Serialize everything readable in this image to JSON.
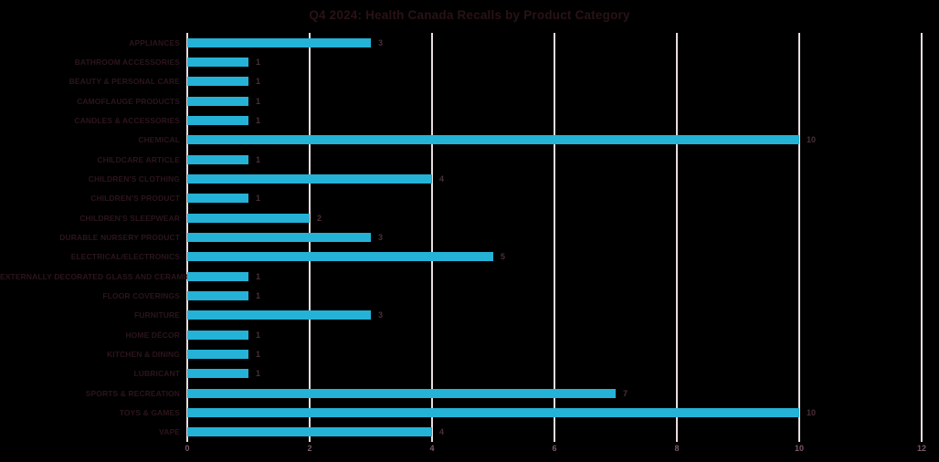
{
  "title": "Q4 2024: Health Canada Recalls by Product Category",
  "chart_data": {
    "type": "bar",
    "orientation": "horizontal",
    "title": "Q4 2024: Health Canada Recalls by Product Category",
    "categories": [
      "APPLIANCES",
      "BATHROOM ACCESSORIES",
      "BEAUTY & PERSONAL CARE",
      "CAMOFLAUGE PRODUCTS",
      "CANDLES & ACCESSORIES",
      "CHEMICAL",
      "CHILDCARE ARTICLE",
      "CHILDREN'S CLOTHING",
      "CHILDREN'S PRODUCT",
      "CHILDREN'S SLEEPWEAR",
      "DURABLE NURSERY PRODUCT",
      "ELECTRICAL/ELECTRONICS",
      "EXTERNALLY DECORATED GLASS AND CERAMICS",
      "FLOOR COVERINGS",
      "FURNITURE",
      "HOME DÉCOR",
      "KITCHEN & DINING",
      "LUBRICANT",
      "SPORTS & RECREATION",
      "TOYS & GAMES",
      "VAPE"
    ],
    "values": [
      3,
      1,
      1,
      1,
      1,
      10,
      1,
      4,
      1,
      2,
      3,
      5,
      1,
      1,
      3,
      1,
      1,
      1,
      7,
      10,
      4
    ],
    "xlabel": "",
    "ylabel": "",
    "xlim": [
      0,
      12
    ],
    "xticks": [
      0,
      2,
      4,
      6,
      8,
      10,
      12
    ],
    "grid": "vertical-only",
    "value_labels_shown": true,
    "legend": "none"
  },
  "colors": {
    "background": "#000000",
    "bar": "#25b2d7",
    "gridline": "#e7dce0",
    "title_text": "#2a1216",
    "category_text": "#2c151b",
    "value_text": "#4a2f36",
    "tick_text": "#7b5a63"
  }
}
